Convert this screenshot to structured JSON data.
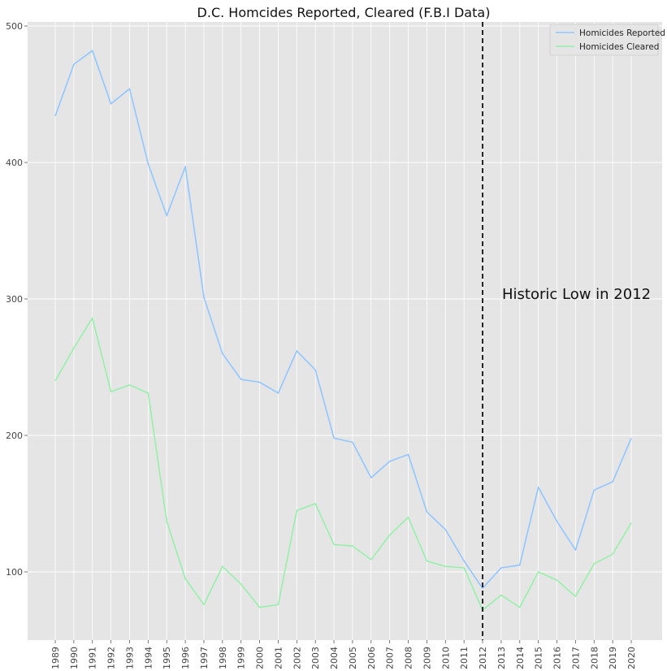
{
  "chart_data": {
    "type": "line",
    "title": "D.C. Homcides Reported, Cleared (F.B.I Data)",
    "xlabel": "",
    "ylabel": "",
    "x": [
      "1989",
      "1990",
      "1991",
      "1992",
      "1993",
      "1994",
      "1995",
      "1996",
      "1997",
      "1998",
      "1999",
      "2000",
      "2001",
      "2002",
      "2003",
      "2004",
      "2005",
      "2006",
      "2007",
      "2008",
      "2009",
      "2010",
      "2011",
      "2012",
      "2013",
      "2014",
      "2015",
      "2016",
      "2017",
      "2018",
      "2019",
      "2020"
    ],
    "series": [
      {
        "name": "Homicides Reported",
        "color": "#92c6ff",
        "values": [
          434,
          472,
          482,
          443,
          454,
          399,
          361,
          397,
          301,
          260,
          241,
          239,
          231,
          262,
          248,
          198,
          195,
          169,
          181,
          186,
          144,
          131,
          108,
          88,
          103,
          105,
          162,
          137,
          116,
          160,
          166,
          198
        ]
      },
      {
        "name": "Homicides Cleared",
        "color": "#97f0aa",
        "values": [
          240,
          264,
          286,
          232,
          237,
          231,
          137,
          95,
          76,
          104,
          91,
          74,
          76,
          145,
          150,
          120,
          119,
          109,
          127,
          140,
          108,
          104,
          103,
          72,
          83,
          74,
          100,
          94,
          82,
          106,
          113,
          136
        ]
      }
    ],
    "yticks": [
      100,
      200,
      300,
      400,
      500
    ],
    "ylim": [
      50,
      503
    ],
    "grid": true,
    "legend_position": "top-right",
    "vline": {
      "x": "2012",
      "style": "dashed",
      "color": "#111111"
    },
    "annotation": {
      "text": "Historic Low in 2012",
      "x": "2013",
      "y": 300
    },
    "background_color": "#e5e5e5",
    "grid_color": "#ffffff"
  }
}
